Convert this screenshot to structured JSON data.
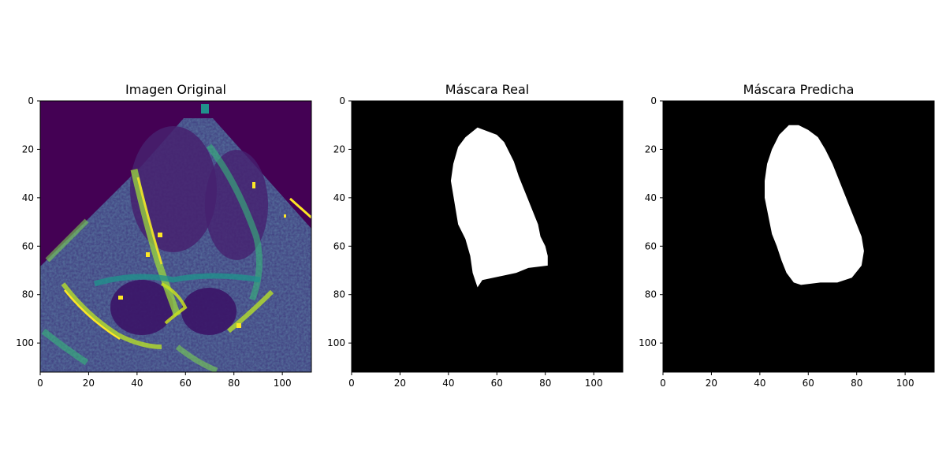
{
  "chart_data": [
    {
      "type": "heatmap",
      "title": "Imagen Original",
      "content": "echocardiogram-viridis",
      "xlim": [
        0,
        112
      ],
      "ylim": [
        112,
        0
      ],
      "xticks": [
        "0",
        "20",
        "40",
        "60",
        "80",
        "100"
      ],
      "yticks": [
        "0",
        "20",
        "40",
        "60",
        "80",
        "100"
      ],
      "colormap": "viridis",
      "colors": {
        "dark": "#440154",
        "mid": "#21918c",
        "bright": "#fde725"
      }
    },
    {
      "type": "heatmap",
      "title": "Máscara Real",
      "content": "binary-mask",
      "xlim": [
        0,
        112
      ],
      "ylim": [
        112,
        0
      ],
      "xticks": [
        "0",
        "20",
        "40",
        "60",
        "80",
        "100"
      ],
      "yticks": [
        "0",
        "20",
        "40",
        "60",
        "80",
        "100"
      ],
      "colormap": "gray",
      "mask_polygon": [
        [
          52,
          11
        ],
        [
          60,
          14
        ],
        [
          63,
          17
        ],
        [
          65,
          21
        ],
        [
          67,
          25
        ],
        [
          69,
          31
        ],
        [
          71,
          36
        ],
        [
          73,
          41
        ],
        [
          75,
          46
        ],
        [
          77,
          51
        ],
        [
          78,
          56
        ],
        [
          80,
          60
        ],
        [
          81,
          64
        ],
        [
          81,
          68
        ],
        [
          73,
          69
        ],
        [
          68,
          71
        ],
        [
          54,
          74
        ],
        [
          52,
          77
        ],
        [
          50,
          71
        ],
        [
          49,
          64
        ],
        [
          47,
          57
        ],
        [
          44,
          51
        ],
        [
          43,
          45
        ],
        [
          42,
          39
        ],
        [
          41,
          33
        ],
        [
          42,
          26
        ],
        [
          44,
          19
        ],
        [
          47,
          15
        ]
      ]
    },
    {
      "type": "heatmap",
      "title": "Máscara Predicha",
      "content": "binary-mask",
      "xlim": [
        0,
        112
      ],
      "ylim": [
        112,
        0
      ],
      "xticks": [
        "0",
        "20",
        "40",
        "60",
        "80",
        "100"
      ],
      "yticks": [
        "0",
        "20",
        "40",
        "60",
        "80",
        "100"
      ],
      "colormap": "gray",
      "mask_polygon": [
        [
          52,
          10
        ],
        [
          56,
          10
        ],
        [
          60,
          12
        ],
        [
          64,
          15
        ],
        [
          67,
          20
        ],
        [
          70,
          26
        ],
        [
          72,
          31
        ],
        [
          74,
          36
        ],
        [
          76,
          41
        ],
        [
          78,
          46
        ],
        [
          80,
          51
        ],
        [
          82,
          56
        ],
        [
          83,
          62
        ],
        [
          82,
          68
        ],
        [
          78,
          73
        ],
        [
          72,
          75
        ],
        [
          65,
          75
        ],
        [
          57,
          76
        ],
        [
          54,
          75
        ],
        [
          51,
          71
        ],
        [
          49,
          66
        ],
        [
          47,
          60
        ],
        [
          45,
          55
        ],
        [
          44,
          50
        ],
        [
          43,
          45
        ],
        [
          42,
          40
        ],
        [
          42,
          33
        ],
        [
          43,
          26
        ],
        [
          45,
          20
        ],
        [
          48,
          14
        ]
      ]
    }
  ]
}
